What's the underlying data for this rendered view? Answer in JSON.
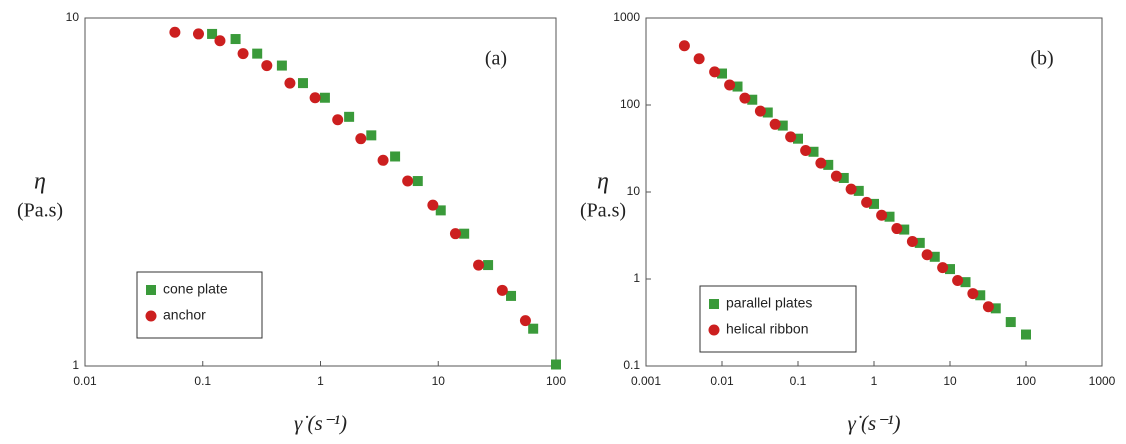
{
  "chart_data": [
    {
      "type": "scatter",
      "annotation": "(a)",
      "ylabel": "η",
      "ylabel_unit": "(Pa.s)",
      "xlabel": "γ̇ (s⁻¹)",
      "xscale": "log",
      "yscale": "log",
      "xlim": [
        0.01,
        100
      ],
      "ylim": [
        1,
        10
      ],
      "xticks": [
        0.01,
        0.1,
        1,
        10,
        100
      ],
      "yticks": [
        1,
        10
      ],
      "legend": "lower left",
      "series": [
        {
          "name": "cone plate",
          "color": "#3a9a3a",
          "marker": "square",
          "x": [
            0.12,
            0.19,
            0.29,
            0.47,
            0.71,
            1.09,
            1.75,
            2.7,
            4.3,
            6.7,
            10.5,
            16.6,
            26.5,
            41.5,
            64,
            100
          ],
          "values": [
            9.0,
            8.7,
            7.9,
            7.3,
            6.5,
            5.9,
            5.2,
            4.6,
            4.0,
            3.4,
            2.8,
            2.4,
            1.95,
            1.59,
            1.28,
            1.01
          ]
        },
        {
          "name": "anchor",
          "color": "#cc1f1f",
          "marker": "circle",
          "x": [
            0.058,
            0.092,
            0.14,
            0.22,
            0.35,
            0.55,
            0.9,
            1.4,
            2.2,
            3.4,
            5.5,
            9,
            14,
            22,
            35,
            55
          ],
          "values": [
            9.1,
            9.0,
            8.6,
            7.9,
            7.3,
            6.5,
            5.9,
            5.1,
            4.5,
            3.9,
            3.4,
            2.9,
            2.4,
            1.95,
            1.65,
            1.35
          ]
        }
      ]
    },
    {
      "type": "scatter",
      "annotation": "(b)",
      "ylabel": "η",
      "ylabel_unit": "(Pa.s)",
      "xlabel": "γ̇ (s⁻¹)",
      "xscale": "log",
      "yscale": "log",
      "xlim": [
        0.001,
        1000
      ],
      "ylim": [
        0.1,
        1000
      ],
      "xticks": [
        0.001,
        0.01,
        0.1,
        1,
        10,
        100,
        1000
      ],
      "yticks": [
        0.1,
        1,
        10,
        100,
        1000
      ],
      "legend": "lower left",
      "series": [
        {
          "name": "parallel plates",
          "color": "#3a9a3a",
          "marker": "square",
          "x": [
            0.01,
            0.016,
            0.025,
            0.04,
            0.063,
            0.1,
            0.16,
            0.25,
            0.4,
            0.63,
            1,
            1.6,
            2.5,
            4,
            6.3,
            10,
            16,
            25,
            40,
            63,
            100
          ],
          "values": [
            230,
            163,
            115,
            82,
            58,
            41,
            29,
            20.5,
            14.5,
            10.3,
            7.3,
            5.2,
            3.7,
            2.6,
            1.8,
            1.3,
            0.92,
            0.65,
            0.46,
            0.32,
            0.23
          ]
        },
        {
          "name": "helical ribbon",
          "color": "#cc1f1f",
          "marker": "circle",
          "x": [
            0.0032,
            0.005,
            0.008,
            0.0126,
            0.02,
            0.032,
            0.05,
            0.08,
            0.126,
            0.2,
            0.32,
            0.5,
            0.8,
            1.26,
            2,
            3.2,
            5,
            8,
            12.6,
            20,
            32
          ],
          "values": [
            480,
            340,
            240,
            170,
            120,
            85,
            60,
            43,
            30,
            21.5,
            15.2,
            10.8,
            7.6,
            5.4,
            3.8,
            2.7,
            1.9,
            1.35,
            0.96,
            0.68,
            0.48
          ]
        }
      ]
    }
  ]
}
